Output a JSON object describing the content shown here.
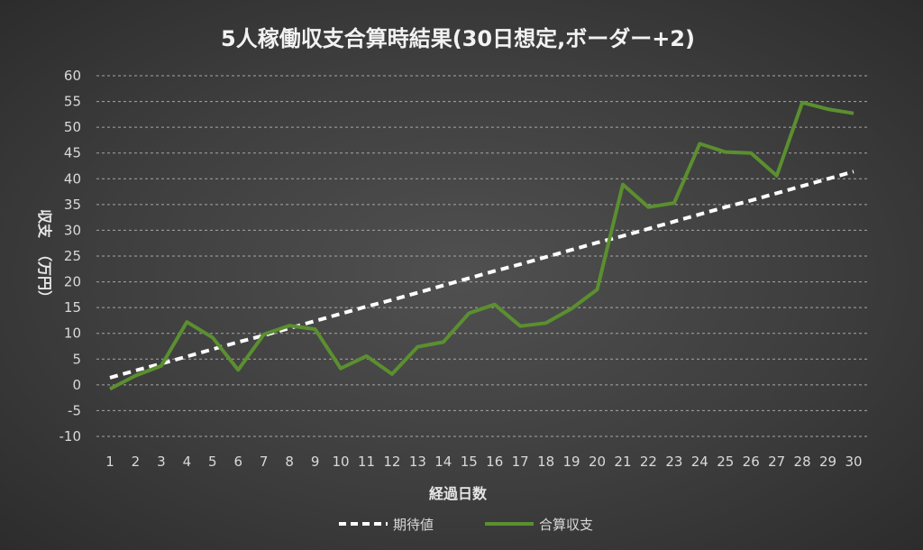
{
  "chart_data": {
    "type": "line",
    "title": "5人稼働収支合算時結果(30日想定,ボーダー+2)",
    "xlabel": "経過日数",
    "ylabel_main": "収支",
    "ylabel_unit": "（万円）",
    "x": [
      1,
      2,
      3,
      4,
      5,
      6,
      7,
      8,
      9,
      10,
      11,
      12,
      13,
      14,
      15,
      16,
      17,
      18,
      19,
      20,
      21,
      22,
      23,
      24,
      25,
      26,
      27,
      28,
      29,
      30
    ],
    "ylim": [
      -10,
      60
    ],
    "yticks": [
      -10,
      -5,
      0,
      5,
      10,
      15,
      20,
      25,
      30,
      35,
      40,
      45,
      50,
      55,
      60
    ],
    "negative_tick_color": "#c00000",
    "grid": true,
    "legend_position": "bottom",
    "series": [
      {
        "name": "期待値",
        "style": "dashed",
        "color": "#ffffff",
        "values": [
          1.4,
          2.8,
          4.1,
          5.5,
          6.9,
          8.3,
          9.6,
          11.0,
          12.4,
          13.8,
          15.2,
          16.5,
          17.9,
          19.3,
          20.7,
          22.1,
          23.4,
          24.8,
          26.2,
          27.6,
          28.9,
          30.3,
          31.7,
          33.1,
          34.5,
          35.8,
          37.2,
          38.6,
          40.0,
          41.4
        ]
      },
      {
        "name": "合算収支",
        "style": "solid",
        "color": "#5b8f2f",
        "values": [
          -0.8,
          1.8,
          3.7,
          12.2,
          9.2,
          2.9,
          9.8,
          11.5,
          10.8,
          3.2,
          5.6,
          2.1,
          7.4,
          8.3,
          13.9,
          15.6,
          11.4,
          12.0,
          14.8,
          18.5,
          38.9,
          34.5,
          35.3,
          46.8,
          45.2,
          45.0,
          40.6,
          54.8,
          53.5,
          52.7
        ]
      }
    ]
  }
}
